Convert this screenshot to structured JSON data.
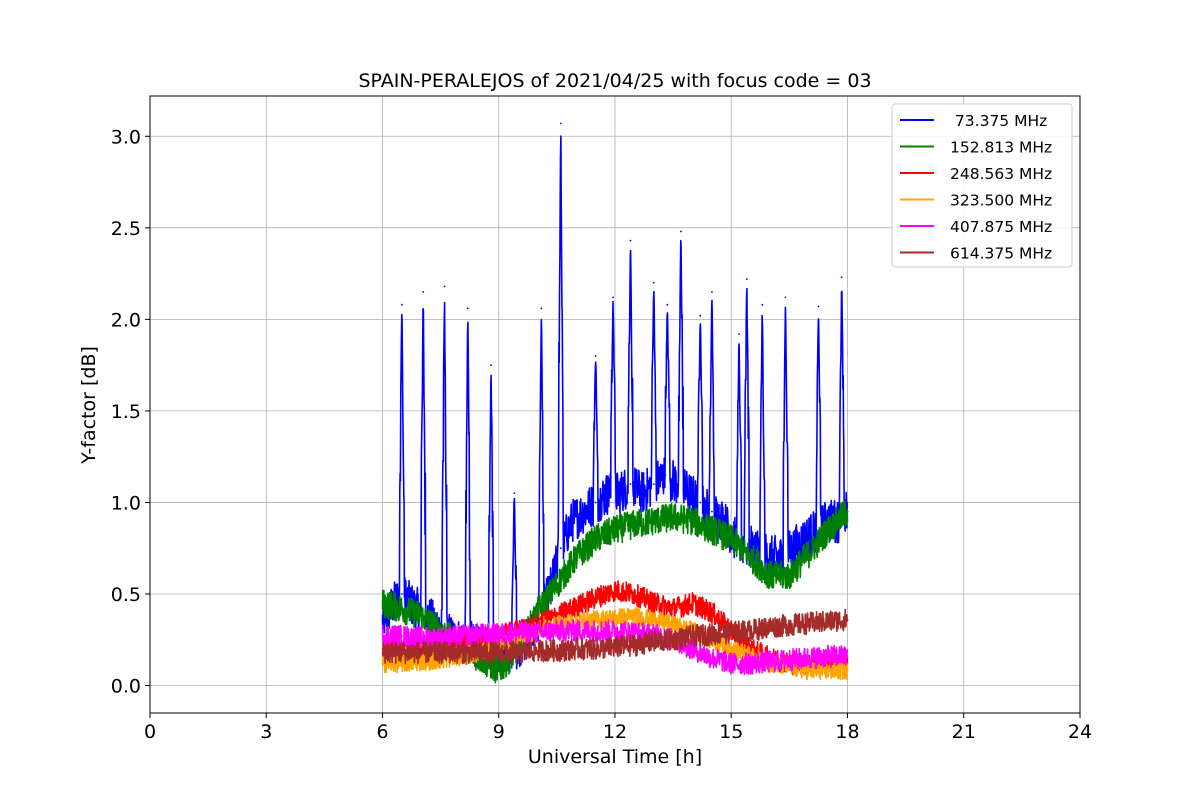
{
  "chart_data": {
    "type": "line",
    "title": "SPAIN-PERALEJOS of 2021/04/25 with focus code = 03",
    "xlabel": "Universal Time [h]",
    "ylabel": "Y-factor [dB]",
    "xlim": [
      0,
      24
    ],
    "ylim": [
      -0.15,
      3.22
    ],
    "xticks": [
      0,
      3,
      6,
      9,
      12,
      15,
      18,
      21,
      24
    ],
    "yticks": [
      0.0,
      0.5,
      1.0,
      1.5,
      2.0,
      2.5,
      3.0
    ],
    "ytick_labels": [
      "0.0",
      "0.5",
      "1.0",
      "1.5",
      "2.0",
      "2.5",
      "3.0"
    ],
    "grid": true,
    "legend_position": "top-right",
    "series": [
      {
        "name": " 73.375 MHz",
        "color": "#0000ff",
        "x": [
          6.0,
          6.3,
          6.5,
          6.7,
          7.0,
          7.3,
          7.6,
          7.9,
          8.2,
          8.5,
          8.8,
          9.1,
          9.4,
          9.7,
          10.0,
          10.3,
          10.6,
          10.9,
          11.2,
          11.5,
          11.8,
          12.1,
          12.4,
          12.7,
          13.0,
          13.3,
          13.6,
          13.9,
          14.2,
          14.5,
          14.8,
          15.1,
          15.4,
          15.7,
          16.0,
          16.3,
          16.6,
          16.9,
          17.2,
          17.5,
          17.8,
          18.0
        ],
        "y": [
          0.35,
          0.45,
          0.5,
          0.45,
          0.4,
          0.35,
          0.3,
          0.25,
          0.25,
          0.2,
          0.2,
          0.18,
          0.2,
          0.25,
          0.35,
          0.5,
          0.75,
          0.9,
          0.95,
          1.0,
          1.05,
          1.05,
          1.1,
          1.05,
          1.1,
          1.15,
          1.1,
          1.05,
          1.0,
          0.95,
          0.9,
          0.8,
          0.75,
          0.75,
          0.7,
          0.7,
          0.75,
          0.8,
          0.85,
          0.9,
          0.9,
          0.95
        ],
        "spikes": [
          [
            6.5,
            2.08
          ],
          [
            7.05,
            2.15
          ],
          [
            7.6,
            2.18
          ],
          [
            8.2,
            2.06
          ],
          [
            8.8,
            1.75
          ],
          [
            9.4,
            1.05
          ],
          [
            10.1,
            2.06
          ],
          [
            10.6,
            3.07
          ],
          [
            11.5,
            1.8
          ],
          [
            11.95,
            2.12
          ],
          [
            12.4,
            2.43
          ],
          [
            13.0,
            2.2
          ],
          [
            13.35,
            2.08
          ],
          [
            13.7,
            2.48
          ],
          [
            14.2,
            2.02
          ],
          [
            14.5,
            2.15
          ],
          [
            15.2,
            1.92
          ],
          [
            15.4,
            2.22
          ],
          [
            15.8,
            2.08
          ],
          [
            16.4,
            2.12
          ],
          [
            17.25,
            2.07
          ],
          [
            17.85,
            2.23
          ]
        ]
      },
      {
        "name": "152.813 MHz",
        "color": "#008000",
        "x": [
          6.0,
          6.5,
          7.0,
          7.5,
          8.0,
          8.5,
          9.0,
          9.5,
          10.0,
          10.5,
          11.0,
          11.5,
          12.0,
          12.5,
          13.0,
          13.5,
          14.0,
          14.5,
          15.0,
          15.5,
          16.0,
          16.5,
          17.0,
          17.5,
          18.0
        ],
        "y": [
          0.45,
          0.42,
          0.38,
          0.3,
          0.22,
          0.15,
          0.08,
          0.2,
          0.4,
          0.55,
          0.7,
          0.8,
          0.85,
          0.88,
          0.9,
          0.92,
          0.9,
          0.85,
          0.8,
          0.7,
          0.6,
          0.6,
          0.72,
          0.85,
          0.95
        ]
      },
      {
        "name": "248.563 MHz",
        "color": "#ff0000",
        "x": [
          6.0,
          6.5,
          7.0,
          7.5,
          8.0,
          8.5,
          9.0,
          9.5,
          10.0,
          10.5,
          11.0,
          11.5,
          12.0,
          12.5,
          13.0,
          13.5,
          14.0,
          14.5,
          15.0,
          15.5,
          16.0,
          16.5,
          17.0,
          17.5,
          18.0
        ],
        "y": [
          0.2,
          0.2,
          0.2,
          0.2,
          0.22,
          0.25,
          0.27,
          0.3,
          0.33,
          0.38,
          0.43,
          0.48,
          0.52,
          0.5,
          0.45,
          0.42,
          0.45,
          0.4,
          0.3,
          0.2,
          0.15,
          0.12,
          0.12,
          0.12,
          0.12
        ]
      },
      {
        "name": "323.500 MHz",
        "color": "#ffa500",
        "x": [
          6.0,
          6.5,
          7.0,
          7.5,
          8.0,
          8.5,
          9.0,
          9.5,
          10.0,
          10.5,
          11.0,
          11.5,
          12.0,
          12.5,
          13.0,
          13.5,
          14.0,
          14.5,
          15.0,
          15.5,
          16.0,
          16.5,
          17.0,
          17.5,
          18.0
        ],
        "y": [
          0.12,
          0.12,
          0.13,
          0.14,
          0.16,
          0.18,
          0.22,
          0.26,
          0.3,
          0.33,
          0.35,
          0.36,
          0.37,
          0.38,
          0.36,
          0.33,
          0.3,
          0.25,
          0.2,
          0.16,
          0.12,
          0.1,
          0.08,
          0.08,
          0.08
        ]
      },
      {
        "name": "407.875 MHz",
        "color": "#ff00ff",
        "x": [
          6.0,
          6.5,
          7.0,
          7.5,
          8.0,
          8.5,
          9.0,
          9.5,
          10.0,
          10.5,
          11.0,
          11.5,
          12.0,
          12.5,
          13.0,
          13.5,
          14.0,
          14.5,
          15.0,
          15.5,
          16.0,
          16.5,
          17.0,
          17.5,
          18.0
        ],
        "y": [
          0.28,
          0.27,
          0.26,
          0.26,
          0.27,
          0.28,
          0.28,
          0.29,
          0.29,
          0.3,
          0.3,
          0.3,
          0.3,
          0.29,
          0.28,
          0.25,
          0.2,
          0.15,
          0.12,
          0.12,
          0.13,
          0.14,
          0.15,
          0.16,
          0.16
        ]
      },
      {
        "name": "614.375 MHz",
        "color": "#a52a2a",
        "x": [
          6.0,
          6.5,
          7.0,
          7.5,
          8.0,
          8.5,
          9.0,
          9.5,
          10.0,
          10.5,
          11.0,
          11.5,
          12.0,
          12.5,
          13.0,
          13.5,
          14.0,
          14.5,
          15.0,
          15.5,
          16.0,
          16.5,
          17.0,
          17.5,
          18.0
        ],
        "y": [
          0.18,
          0.18,
          0.18,
          0.18,
          0.18,
          0.18,
          0.18,
          0.18,
          0.19,
          0.19,
          0.2,
          0.2,
          0.21,
          0.22,
          0.24,
          0.25,
          0.27,
          0.28,
          0.29,
          0.3,
          0.32,
          0.33,
          0.34,
          0.35,
          0.36
        ]
      }
    ]
  }
}
